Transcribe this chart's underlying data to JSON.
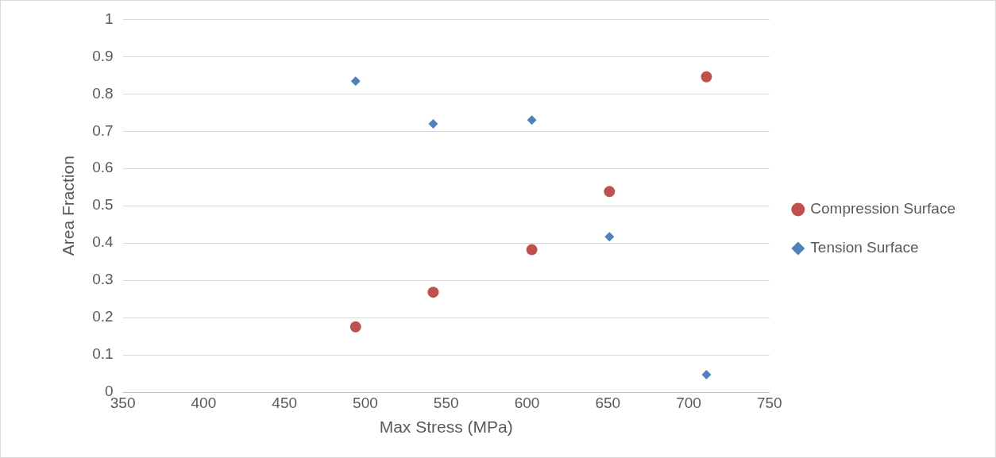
{
  "chart_data": {
    "type": "scatter",
    "xlabel": "Max Stress (MPa)",
    "ylabel": "Area Fraction",
    "x": [
      494,
      542,
      603,
      651,
      711
    ],
    "series": [
      {
        "name": "Compression Surface",
        "color": "#c0504d",
        "marker": "circle",
        "values": [
          0.175,
          0.268,
          0.382,
          0.538,
          0.846
        ]
      },
      {
        "name": "Tension Surface",
        "color": "#4f81bd",
        "marker": "diamond",
        "values": [
          0.834,
          0.72,
          0.73,
          0.417,
          0.047
        ]
      }
    ],
    "xlim": [
      350,
      750
    ],
    "xticks": [
      350,
      400,
      450,
      500,
      550,
      600,
      650,
      700,
      750
    ],
    "ylim": [
      0,
      1
    ],
    "yticks": [
      0,
      0.1,
      0.2,
      0.3,
      0.4,
      0.5,
      0.6,
      0.7,
      0.8,
      0.9,
      1
    ],
    "grid": "y",
    "legend": "right"
  }
}
